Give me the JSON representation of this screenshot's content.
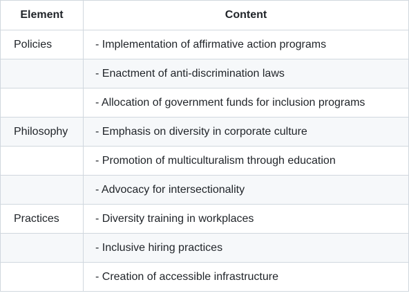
{
  "table": {
    "headers": [
      "Element",
      "Content"
    ],
    "rows": [
      {
        "element": "Policies",
        "content": "- Implementation of affirmative action programs"
      },
      {
        "element": "",
        "content": "- Enactment of anti-discrimination laws"
      },
      {
        "element": "",
        "content": "- Allocation of government funds for inclusion programs"
      },
      {
        "element": "Philosophy",
        "content": "- Emphasis on diversity in corporate culture"
      },
      {
        "element": "",
        "content": "- Promotion of multiculturalism through education"
      },
      {
        "element": "",
        "content": "- Advocacy for intersectionality"
      },
      {
        "element": "Practices",
        "content": "- Diversity training in workplaces"
      },
      {
        "element": "",
        "content": "- Inclusive hiring practices"
      },
      {
        "element": "",
        "content": "- Creation of accessible infrastructure"
      }
    ]
  }
}
